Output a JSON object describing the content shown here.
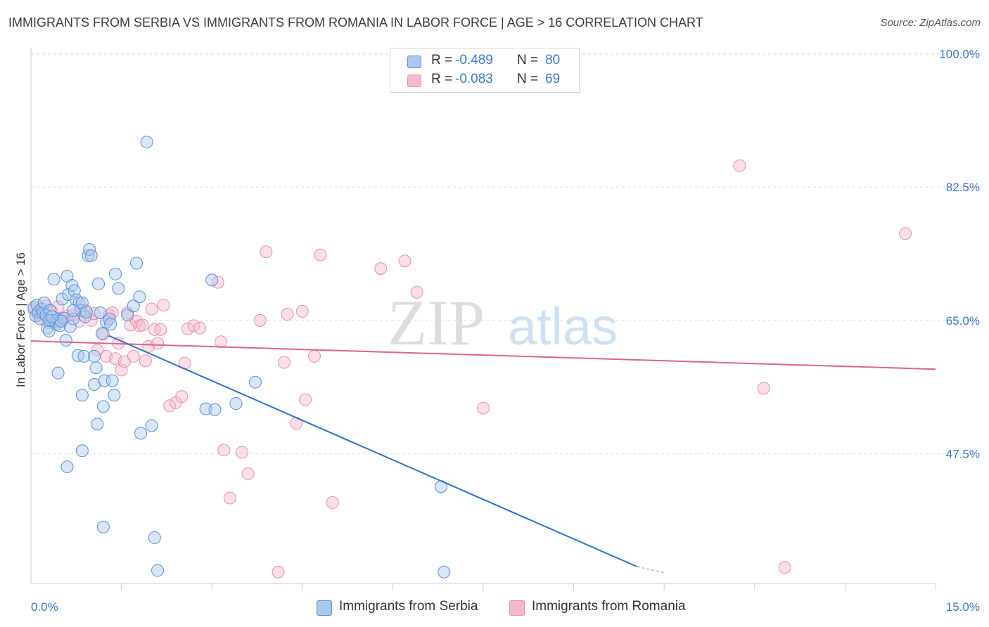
{
  "title": "IMMIGRANTS FROM SERBIA VS IMMIGRANTS FROM ROMANIA IN LABOR FORCE | AGE > 16 CORRELATION CHART",
  "source": "Source: ZipAtlas.com",
  "watermark": {
    "zip": "ZIP",
    "atlas": "atlas"
  },
  "legend": {
    "rows": [
      {
        "r_label": "R =",
        "r_value": "-0.489",
        "n_label": "N =",
        "n_value": "80"
      },
      {
        "r_label": "R =",
        "r_value": "-0.083",
        "n_label": "N =",
        "n_value": "69"
      }
    ]
  },
  "bottom_legend": {
    "serbia": "Immigrants from Serbia",
    "romania": "Immigrants from Romania"
  },
  "colors": {
    "serbia_fill": "#aac8ee",
    "serbia_stroke": "#5b8fd6",
    "serbia_line": "#2d6fd0",
    "romania_fill": "#f5b9cc",
    "romania_stroke": "#e591ae",
    "romania_line": "#e0608e",
    "tick_label": "#3b78c8",
    "grid": "#dddddd"
  },
  "chart_data": {
    "type": "scatter",
    "title": "IMMIGRANTS FROM SERBIA VS IMMIGRANTS FROM ROMANIA IN LABOR FORCE | AGE > 16 CORRELATION CHART",
    "xlabel": "",
    "ylabel": "In Labor Force | Age > 16",
    "xlim": [
      0,
      15
    ],
    "ylim": [
      30.5,
      101.5
    ],
    "x_tick_labels": [
      "0.0%",
      "15.0%"
    ],
    "y_ticks": [
      47.5,
      65.0,
      82.5,
      100.0
    ],
    "y_tick_labels": [
      "47.5%",
      "65.0%",
      "82.5%",
      "100.0%"
    ],
    "series": [
      {
        "name": "Immigrants from Serbia",
        "r": -0.489,
        "n": 80,
        "trend": {
          "x": [
            1.29,
            10.05
          ],
          "y": [
            63.0,
            32.7
          ],
          "dash_x": [
            10.05,
            10.5
          ],
          "dash_y": [
            32.7,
            31.9
          ]
        },
        "points": [
          [
            0.05,
            66.7
          ],
          [
            0.08,
            65.6
          ],
          [
            0.1,
            67.0
          ],
          [
            0.12,
            66.1
          ],
          [
            0.15,
            65.2
          ],
          [
            0.18,
            66.5
          ],
          [
            0.2,
            66.0
          ],
          [
            0.22,
            67.3
          ],
          [
            0.25,
            65.7
          ],
          [
            0.27,
            64.0
          ],
          [
            0.3,
            63.6
          ],
          [
            0.32,
            66.3
          ],
          [
            0.35,
            65.0
          ],
          [
            0.38,
            70.4
          ],
          [
            0.4,
            64.8
          ],
          [
            0.42,
            64.5
          ],
          [
            0.45,
            65.1
          ],
          [
            0.48,
            64.3
          ],
          [
            0.5,
            64.9
          ],
          [
            0.52,
            67.8
          ],
          [
            0.55,
            65.3
          ],
          [
            0.58,
            62.4
          ],
          [
            0.6,
            70.8
          ],
          [
            0.62,
            68.4
          ],
          [
            0.65,
            64.2
          ],
          [
            0.68,
            69.6
          ],
          [
            0.7,
            65.2
          ],
          [
            0.72,
            68.9
          ],
          [
            0.75,
            67.7
          ],
          [
            0.78,
            60.4
          ],
          [
            0.8,
            67.3
          ],
          [
            0.83,
            66.3
          ],
          [
            0.85,
            67.3
          ],
          [
            0.88,
            60.3
          ],
          [
            0.9,
            65.5
          ],
          [
            0.92,
            66.1
          ],
          [
            0.95,
            73.5
          ],
          [
            0.97,
            74.3
          ],
          [
            1.0,
            73.5
          ],
          [
            1.05,
            56.6
          ],
          [
            1.08,
            58.8
          ],
          [
            1.1,
            51.4
          ],
          [
            1.12,
            69.8
          ],
          [
            1.15,
            66.0
          ],
          [
            1.18,
            63.3
          ],
          [
            1.2,
            53.7
          ],
          [
            1.22,
            57.1
          ],
          [
            1.25,
            64.8
          ],
          [
            1.3,
            65.2
          ],
          [
            1.32,
            64.5
          ],
          [
            1.35,
            57.1
          ],
          [
            1.38,
            55.2
          ],
          [
            1.4,
            71.1
          ],
          [
            1.45,
            69.2
          ],
          [
            1.6,
            65.7
          ],
          [
            1.7,
            66.9
          ],
          [
            1.75,
            72.5
          ],
          [
            1.8,
            68.1
          ],
          [
            1.82,
            50.2
          ],
          [
            1.92,
            88.4
          ],
          [
            2.0,
            51.2
          ],
          [
            2.05,
            36.5
          ],
          [
            2.1,
            32.2
          ],
          [
            2.9,
            53.4
          ],
          [
            3.0,
            70.3
          ],
          [
            3.05,
            53.3
          ],
          [
            3.4,
            54.1
          ],
          [
            3.72,
            56.9
          ],
          [
            6.8,
            43.2
          ],
          [
            6.85,
            32.0
          ],
          [
            0.45,
            58.1
          ],
          [
            0.6,
            45.8
          ],
          [
            0.85,
            55.2
          ],
          [
            0.85,
            47.9
          ],
          [
            1.2,
            37.9
          ],
          [
            1.05,
            60.3
          ],
          [
            0.5,
            64.9
          ],
          [
            0.3,
            65.0
          ],
          [
            0.35,
            65.5
          ],
          [
            0.7,
            66.3
          ]
        ]
      },
      {
        "name": "Immigrants from Romania",
        "r": -0.083,
        "n": 69,
        "trend": {
          "x": [
            0.0,
            15.0
          ],
          "y": [
            62.3,
            58.6
          ]
        },
        "points": [
          [
            0.05,
            66.4
          ],
          [
            0.12,
            65.7
          ],
          [
            0.2,
            65.3
          ],
          [
            0.25,
            66.9
          ],
          [
            0.3,
            64.7
          ],
          [
            0.4,
            65.0
          ],
          [
            0.5,
            65.2
          ],
          [
            0.6,
            65.6
          ],
          [
            0.7,
            65.7
          ],
          [
            0.8,
            64.9
          ],
          [
            0.9,
            66.3
          ],
          [
            1.0,
            65.0
          ],
          [
            1.05,
            65.9
          ],
          [
            1.1,
            61.1
          ],
          [
            1.2,
            63.2
          ],
          [
            1.25,
            60.3
          ],
          [
            1.3,
            65.7
          ],
          [
            1.35,
            66.0
          ],
          [
            1.4,
            60.0
          ],
          [
            1.45,
            62.0
          ],
          [
            1.5,
            58.5
          ],
          [
            1.55,
            59.6
          ],
          [
            1.6,
            66.0
          ],
          [
            1.65,
            64.4
          ],
          [
            1.7,
            60.3
          ],
          [
            1.75,
            64.9
          ],
          [
            1.8,
            64.3
          ],
          [
            1.85,
            64.4
          ],
          [
            1.9,
            59.7
          ],
          [
            1.95,
            61.6
          ],
          [
            2.0,
            66.5
          ],
          [
            2.05,
            63.8
          ],
          [
            2.1,
            62.0
          ],
          [
            2.15,
            63.8
          ],
          [
            2.2,
            67.0
          ],
          [
            2.3,
            53.8
          ],
          [
            2.4,
            54.2
          ],
          [
            2.5,
            55.0
          ],
          [
            2.55,
            59.4
          ],
          [
            2.6,
            63.9
          ],
          [
            2.7,
            64.3
          ],
          [
            2.8,
            64.0
          ],
          [
            3.1,
            70.0
          ],
          [
            3.15,
            62.2
          ],
          [
            3.2,
            48.0
          ],
          [
            3.3,
            41.7
          ],
          [
            3.5,
            47.7
          ],
          [
            3.6,
            44.9
          ],
          [
            3.8,
            65.0
          ],
          [
            3.9,
            74.0
          ],
          [
            4.1,
            32.0
          ],
          [
            4.2,
            59.5
          ],
          [
            4.25,
            65.8
          ],
          [
            4.4,
            51.5
          ],
          [
            4.5,
            66.2
          ],
          [
            4.55,
            54.6
          ],
          [
            4.7,
            60.3
          ],
          [
            4.8,
            73.6
          ],
          [
            5.0,
            41.1
          ],
          [
            5.8,
            71.8
          ],
          [
            6.2,
            72.8
          ],
          [
            6.4,
            68.7
          ],
          [
            7.5,
            53.5
          ],
          [
            11.75,
            85.3
          ],
          [
            12.15,
            56.1
          ],
          [
            12.5,
            32.6
          ],
          [
            14.5,
            76.4
          ],
          [
            0.35,
            66.1
          ],
          [
            0.45,
            66.8
          ]
        ]
      }
    ]
  }
}
